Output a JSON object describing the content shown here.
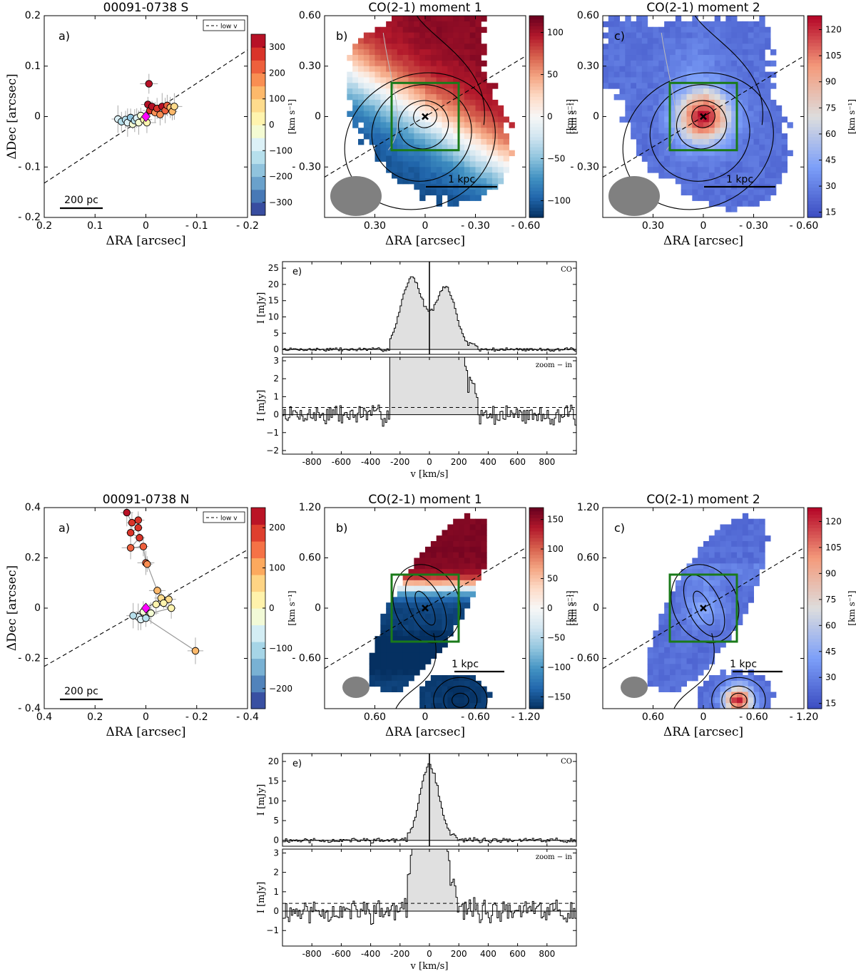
{
  "colors": {
    "blue_dark": "#1f3f8a",
    "red_dark": "#8b0a1f",
    "green_box": "#1a7a1a",
    "magenta": "#ff00ff",
    "beam_gray": "#808080",
    "hist_fill": "#e0e0e0"
  },
  "scales": {
    "scale_200pc": "200 pc",
    "scale_1kpc": "1 kpc"
  },
  "chart_data": [
    {
      "id": "S_a",
      "type": "scatter",
      "title": "00091-0738 S",
      "panel_label": "a)",
      "xlabel": "ΔRA [arcsec]",
      "ylabel": "ΔDec [arcsec]",
      "xlim": [
        0.2,
        -0.2
      ],
      "ylim": [
        -0.2,
        0.2
      ],
      "xticks": [
        "0.2",
        "0.1",
        "0",
        "- 0.1",
        "- 0.2"
      ],
      "yticks": [
        "- 0.2",
        "- 0.1",
        "0",
        "0.1",
        "0.2"
      ],
      "legend": "low v",
      "cbar_ticks": [
        "300",
        "200",
        "100",
        "0",
        "−100",
        "−200",
        "−300"
      ],
      "cbar_range": [
        -350,
        350
      ],
      "line": {
        "slope": 0.66
      },
      "points": [
        {
          "x": 0.055,
          "y": -0.005,
          "v": -80
        },
        {
          "x": 0.048,
          "y": -0.01,
          "v": -110
        },
        {
          "x": 0.04,
          "y": -0.006,
          "v": -140
        },
        {
          "x": 0.036,
          "y": -0.012,
          "v": -90
        },
        {
          "x": 0.03,
          "y": -0.002,
          "v": -160
        },
        {
          "x": 0.026,
          "y": -0.015,
          "v": -40
        },
        {
          "x": 0.022,
          "y": -0.008,
          "v": -120
        },
        {
          "x": 0.018,
          "y": -0.003,
          "v": -60
        },
        {
          "x": 0.014,
          "y": -0.012,
          "v": -20
        },
        {
          "x": 0.01,
          "y": 0.002,
          "v": -10
        },
        {
          "x": 0.004,
          "y": -0.006,
          "v": 20
        },
        {
          "x": -0.004,
          "y": 0.024,
          "v": 330
        },
        {
          "x": -0.008,
          "y": 0.012,
          "v": 250
        },
        {
          "x": -0.012,
          "y": 0.02,
          "v": 300
        },
        {
          "x": -0.018,
          "y": 0.008,
          "v": 190
        },
        {
          "x": -0.022,
          "y": 0.016,
          "v": 260
        },
        {
          "x": -0.028,
          "y": 0.004,
          "v": 160
        },
        {
          "x": -0.032,
          "y": 0.02,
          "v": 330
        },
        {
          "x": -0.038,
          "y": 0.012,
          "v": 240
        },
        {
          "x": -0.042,
          "y": 0.022,
          "v": 210
        },
        {
          "x": -0.048,
          "y": 0.018,
          "v": 130
        },
        {
          "x": -0.052,
          "y": 0.01,
          "v": 100
        },
        {
          "x": -0.056,
          "y": 0.02,
          "v": 70
        },
        {
          "x": -0.006,
          "y": 0.065,
          "v": 310
        },
        {
          "x": -0.002,
          "y": -0.012,
          "v": 40
        }
      ],
      "marker": {
        "x": 0.0,
        "y": 0.0
      }
    },
    {
      "id": "S_b",
      "type": "heatmap",
      "title": "CO(2-1) moment 1",
      "panel_label": "b)",
      "xlabel": "ΔRA [arcsec]",
      "ylabel_right": "[km s⁻¹]",
      "xticks": [
        "0.30",
        "0",
        "- 0.30",
        "- 0.60"
      ],
      "yticks": [
        "0.60",
        "0.30",
        "0",
        "- 0.30"
      ],
      "ytick_values": [
        0.6,
        0.3,
        0,
        -0.3
      ],
      "xtick_values": [
        0.3,
        0,
        -0.3,
        -0.6
      ],
      "xlim": [
        0.6,
        -0.6
      ],
      "ylim": [
        -0.6,
        0.6
      ],
      "cbar_ticks": [
        "100",
        "50",
        "0",
        "−50",
        "−100"
      ],
      "cbar_values": [
        100,
        50,
        0,
        -50,
        -100
      ],
      "cbar_range": [
        -120,
        120
      ],
      "map": "mom1S"
    },
    {
      "id": "S_c",
      "type": "heatmap",
      "title": "CO(2-1) moment 2",
      "panel_label": "c)",
      "xlabel": "ΔRA [arcsec]",
      "ylabel_right": "[km s⁻¹]",
      "xticks": [
        "0.30",
        "0",
        "- 0.30",
        "- 0.60"
      ],
      "yticks": [
        "0.60",
        "0.30",
        "0",
        "- 0.30"
      ],
      "ytick_values": [
        0.6,
        0.3,
        0,
        -0.3
      ],
      "xtick_values": [
        0.3,
        0,
        -0.3,
        -0.6
      ],
      "xlim": [
        0.6,
        -0.6
      ],
      "ylim": [
        -0.6,
        0.6
      ],
      "cbar_ticks": [
        "120",
        "105",
        "90",
        "75",
        "60",
        "45",
        "30",
        "15"
      ],
      "cbar_values": [
        120,
        105,
        90,
        75,
        60,
        45,
        30,
        15
      ],
      "cbar_range": [
        12,
        128
      ],
      "map": "mom2S"
    },
    {
      "id": "S_e",
      "type": "histogram",
      "panel_label": "e)",
      "label_top": "CO",
      "label_bottom": "zoom − in",
      "xlabel": "v [km/s]",
      "ylabel": "I [mJy]",
      "xlim": [
        -1000,
        1000
      ],
      "xticks": [
        "-800",
        "-600",
        "-400",
        "-200",
        "0",
        "200",
        "400",
        "600",
        "800"
      ],
      "xtick_values": [
        -800,
        -600,
        -400,
        -200,
        0,
        200,
        400,
        600,
        800
      ],
      "top_ylim": [
        -1.5,
        27
      ],
      "top_yticks": [
        "0",
        "5",
        "10",
        "15",
        "20",
        "25"
      ],
      "top_ytick_values": [
        0,
        5,
        10,
        15,
        20,
        25
      ],
      "bot_ylim": [
        -2.2,
        3.2
      ],
      "bot_yticks": [
        "−2",
        "−1",
        "0",
        "1",
        "2",
        "3"
      ],
      "bot_ytick_values": [
        -2,
        -1,
        0,
        1,
        2,
        3
      ],
      "threshold": 0.4,
      "profile": {
        "comps": [
          {
            "mu": -120,
            "sig": 75,
            "a": 22
          },
          {
            "mu": 110,
            "sig": 70,
            "a": 19
          }
        ],
        "edges": [
          -270,
          330
        ],
        "noise": 0.45,
        "seed": 7
      }
    },
    {
      "id": "N_a",
      "type": "scatter",
      "title": "00091-0738 N",
      "panel_label": "a)",
      "xlabel": "ΔRA [arcsec]",
      "ylabel": "ΔDec [arcsec]",
      "xlim": [
        0.4,
        -0.4
      ],
      "ylim": [
        -0.4,
        0.4
      ],
      "xticks": [
        "0.4",
        "0.2",
        "0",
        "- 0.2",
        "- 0.4"
      ],
      "yticks": [
        "- 0.4",
        "- 0.2",
        "0",
        "0.2",
        "0.4"
      ],
      "legend": "low v",
      "cbar_ticks": [
        "200",
        "100",
        "0",
        "−100",
        "−200"
      ],
      "cbar_range": [
        -220,
        220
      ],
      "line": {
        "slope": 0.58
      },
      "connected": true,
      "points": [
        {
          "x": 0.075,
          "y": 0.38,
          "v": 190
        },
        {
          "x": 0.055,
          "y": 0.34,
          "v": 180
        },
        {
          "x": 0.03,
          "y": 0.35,
          "v": 175
        },
        {
          "x": 0.03,
          "y": 0.32,
          "v": 160
        },
        {
          "x": 0.06,
          "y": 0.3,
          "v": 170
        },
        {
          "x": 0.025,
          "y": 0.28,
          "v": 165
        },
        {
          "x": 0.06,
          "y": 0.24,
          "v": 150
        },
        {
          "x": 0.01,
          "y": 0.245,
          "v": 140
        },
        {
          "x": 0.0,
          "y": 0.18,
          "v": 130
        },
        {
          "x": -0.005,
          "y": 0.175,
          "v": 120
        },
        {
          "x": -0.045,
          "y": 0.07,
          "v": 90
        },
        {
          "x": -0.06,
          "y": 0.04,
          "v": 60
        },
        {
          "x": -0.09,
          "y": 0.035,
          "v": 40
        },
        {
          "x": -0.07,
          "y": 0.02,
          "v": 30
        },
        {
          "x": -0.04,
          "y": 0.015,
          "v": 15
        },
        {
          "x": -0.1,
          "y": 0.0,
          "v": 25
        },
        {
          "x": -0.02,
          "y": -0.02,
          "v": -5
        },
        {
          "x": 0.03,
          "y": -0.035,
          "v": -60
        },
        {
          "x": 0.05,
          "y": -0.03,
          "v": -80
        },
        {
          "x": 0.02,
          "y": -0.045,
          "v": -40
        },
        {
          "x": 0.01,
          "y": -0.015,
          "v": -30
        },
        {
          "x": 0.0,
          "y": -0.04,
          "v": -70
        },
        {
          "x": -0.195,
          "y": -0.17,
          "v": 90
        }
      ],
      "marker": {
        "x": 0.0,
        "y": 0.0
      }
    },
    {
      "id": "N_b",
      "type": "heatmap",
      "title": "CO(2-1) moment 1",
      "panel_label": "b)",
      "xlabel": "ΔRA [arcsec]",
      "ylabel_right": "[km s⁻¹]",
      "xticks": [
        "0.60",
        "0",
        "- 0.60",
        "- 1.20"
      ],
      "yticks": [
        "1.20",
        "0.60",
        "0",
        "- 0.60"
      ],
      "ytick_values": [
        1.2,
        0.6,
        0,
        -0.6
      ],
      "xtick_values": [
        0.6,
        0,
        -0.6,
        -1.2
      ],
      "xlim": [
        1.2,
        -1.2
      ],
      "ylim": [
        -1.2,
        1.2
      ],
      "cbar_ticks": [
        "150",
        "100",
        "50",
        "0",
        "−50",
        "−100",
        "−150"
      ],
      "cbar_values": [
        150,
        100,
        50,
        0,
        -50,
        -100,
        -150
      ],
      "cbar_range": [
        -170,
        170
      ],
      "map": "mom1N"
    },
    {
      "id": "N_c",
      "type": "heatmap",
      "title": "CO(2-1) moment 2",
      "panel_label": "c)",
      "xlabel": "ΔRA [arcsec]",
      "ylabel_right": "[km s⁻¹]",
      "xticks": [
        "0.60",
        "0",
        "- 0.60",
        "- 1.20"
      ],
      "yticks": [
        "1.20",
        "0.60",
        "0",
        "- 0.60"
      ],
      "ytick_values": [
        1.2,
        0.6,
        0,
        -0.6
      ],
      "xtick_values": [
        0.6,
        0,
        -0.6,
        -1.2
      ],
      "xlim": [
        1.2,
        -1.2
      ],
      "ylim": [
        -1.2,
        1.2
      ],
      "cbar_ticks": [
        "120",
        "105",
        "90",
        "75",
        "60",
        "45",
        "30",
        "15"
      ],
      "cbar_values": [
        120,
        105,
        90,
        75,
        60,
        45,
        30,
        15
      ],
      "cbar_range": [
        12,
        128
      ],
      "map": "mom2N"
    },
    {
      "id": "N_e",
      "type": "histogram",
      "panel_label": "e)",
      "label_top": "CO",
      "label_bottom": "zoom − in",
      "xlabel": "v [km/s]",
      "ylabel": "I [mJy]",
      "xlim": [
        -1000,
        1000
      ],
      "xticks": [
        "-800",
        "-600",
        "-400",
        "-200",
        "0",
        "200",
        "400",
        "600",
        "800"
      ],
      "xtick_values": [
        -800,
        -600,
        -400,
        -200,
        0,
        200,
        400,
        600,
        800
      ],
      "top_ylim": [
        -1.5,
        22
      ],
      "top_yticks": [
        "0",
        "5",
        "10",
        "15",
        "20"
      ],
      "top_ytick_values": [
        0,
        5,
        10,
        15,
        20
      ],
      "bot_ylim": [
        -1.8,
        3.2
      ],
      "bot_yticks": [
        "−1",
        "0",
        "1",
        "2",
        "3"
      ],
      "bot_ytick_values": [
        -1,
        0,
        1,
        2,
        3
      ],
      "threshold": 0.4,
      "profile": {
        "comps": [
          {
            "mu": 0,
            "sig": 65,
            "a": 19
          }
        ],
        "edges": [
          -150,
          180
        ],
        "noise": 0.5,
        "seed": 11
      }
    }
  ]
}
